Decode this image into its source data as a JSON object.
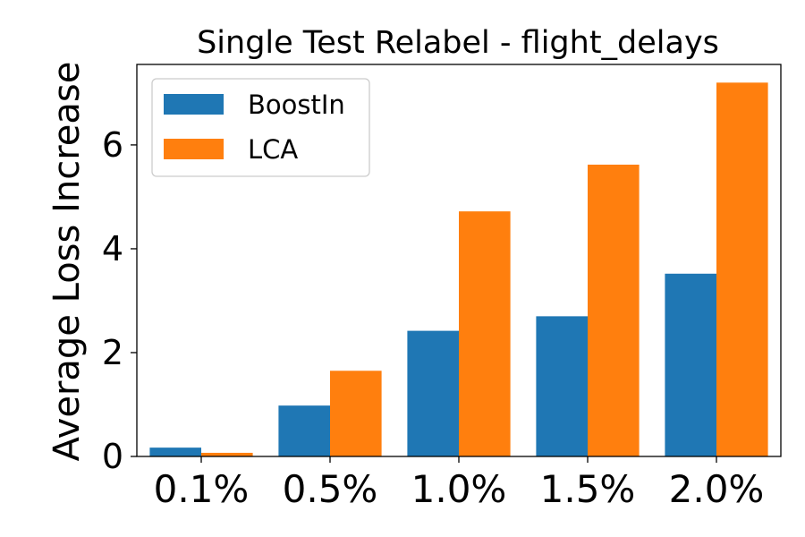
{
  "chart_data": {
    "type": "bar",
    "title": "Single Test Relabel - flight_delays",
    "xlabel": "",
    "ylabel": "Average Loss Increase",
    "categories": [
      "0.1%",
      "0.5%",
      "1.0%",
      "1.5%",
      "2.0%"
    ],
    "series": [
      {
        "name": "BoostIn",
        "color": "#1f77b4",
        "values": [
          0.17,
          0.98,
          2.42,
          2.7,
          3.52
        ]
      },
      {
        "name": "LCA",
        "color": "#ff7f0e",
        "values": [
          0.07,
          1.65,
          4.72,
          5.62,
          7.2
        ]
      }
    ],
    "ylim": [
      0,
      7.55
    ],
    "yticks": [
      0,
      2,
      4,
      6
    ],
    "ytick_labels": [
      "0",
      "2",
      "4",
      "6"
    ],
    "grid": false,
    "legend_position": "upper-left"
  }
}
